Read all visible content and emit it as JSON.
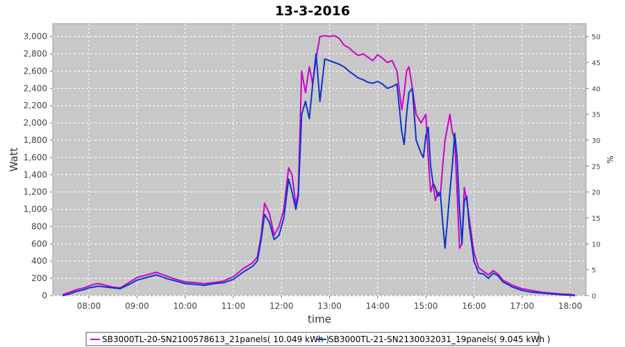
{
  "chart_data": {
    "type": "line",
    "title": "13-3-2016",
    "xlabel": "time",
    "ylabel": "Watt",
    "y2label": "%",
    "xlim": [
      7.25,
      18.33
    ],
    "ylim": [
      0,
      3150
    ],
    "y2lim": [
      0,
      52.5
    ],
    "grid": true,
    "legend_position": "bottom",
    "x_ticks": [
      "08:00",
      "09:00",
      "10:00",
      "11:00",
      "12:00",
      "13:00",
      "14:00",
      "15:00",
      "16:00",
      "17:00",
      "18:00"
    ],
    "y_ticks": [
      "0",
      "200",
      "400",
      "600",
      "800",
      "1,000",
      "1,200",
      "1,400",
      "1,600",
      "1,800",
      "2,000",
      "2,200",
      "2,400",
      "2,600",
      "2,800",
      "3,000"
    ],
    "y2_ticks": [
      "0",
      "5",
      "10",
      "15",
      "20",
      "25",
      "30",
      "35",
      "40",
      "45",
      "50"
    ],
    "series": [
      {
        "name": "SB3000TL-20-SN2100578613_21panels( 10.049 kWh )",
        "color": "#cc00cc",
        "x": [
          7.45,
          7.6,
          7.75,
          7.9,
          8.0,
          8.1,
          8.2,
          8.35,
          8.5,
          8.65,
          8.8,
          9.0,
          9.2,
          9.4,
          9.6,
          9.8,
          10.0,
          10.2,
          10.4,
          10.6,
          10.8,
          11.0,
          11.2,
          11.4,
          11.5,
          11.58,
          11.65,
          11.75,
          11.85,
          11.95,
          12.05,
          12.15,
          12.22,
          12.3,
          12.35,
          12.42,
          12.5,
          12.58,
          12.65,
          12.72,
          12.8,
          12.9,
          13.0,
          13.1,
          13.2,
          13.3,
          13.4,
          13.5,
          13.6,
          13.7,
          13.8,
          13.9,
          14.0,
          14.1,
          14.2,
          14.3,
          14.4,
          14.5,
          14.55,
          14.6,
          14.65,
          14.72,
          14.8,
          14.9,
          14.95,
          15.0,
          15.05,
          15.1,
          15.15,
          15.2,
          15.25,
          15.3,
          15.35,
          15.4,
          15.5,
          15.55,
          15.6,
          15.65,
          15.7,
          15.75,
          15.8,
          15.85,
          15.9,
          16.0,
          16.1,
          16.2,
          16.3,
          16.4,
          16.5,
          16.6,
          16.7,
          16.8,
          17.0,
          17.2,
          17.4,
          17.6,
          17.8,
          18.0,
          18.1
        ],
        "values": [
          10,
          40,
          70,
          90,
          110,
          130,
          140,
          120,
          100,
          90,
          140,
          210,
          240,
          270,
          230,
          190,
          160,
          150,
          140,
          150,
          170,
          220,
          310,
          380,
          450,
          700,
          1070,
          950,
          700,
          800,
          1000,
          1480,
          1400,
          1050,
          1200,
          2600,
          2350,
          2650,
          2450,
          2750,
          3000,
          3010,
          3000,
          3010,
          2980,
          2900,
          2870,
          2820,
          2780,
          2800,
          2760,
          2720,
          2790,
          2750,
          2700,
          2720,
          2600,
          2150,
          2350,
          2600,
          2650,
          2400,
          2100,
          2000,
          2050,
          2100,
          1600,
          1200,
          1300,
          1100,
          1200,
          1150,
          1500,
          1800,
          2100,
          1900,
          1800,
          1200,
          550,
          600,
          1250,
          1100,
          900,
          500,
          320,
          280,
          240,
          290,
          250,
          180,
          150,
          120,
          80,
          60,
          40,
          30,
          20,
          15,
          5
        ]
      },
      {
        "name": "SB3000TL-21-SN2130032031_19panels( 9.045 kWh )",
        "color": "#0a34cc",
        "x": [
          7.45,
          7.6,
          7.75,
          7.9,
          8.0,
          8.1,
          8.2,
          8.35,
          8.5,
          8.65,
          8.8,
          9.0,
          9.2,
          9.4,
          9.6,
          9.8,
          10.0,
          10.2,
          10.4,
          10.6,
          10.8,
          11.0,
          11.2,
          11.4,
          11.5,
          11.58,
          11.65,
          11.75,
          11.85,
          11.95,
          12.05,
          12.15,
          12.22,
          12.3,
          12.35,
          12.42,
          12.5,
          12.58,
          12.65,
          12.72,
          12.8,
          12.9,
          13.0,
          13.1,
          13.2,
          13.3,
          13.4,
          13.5,
          13.6,
          13.7,
          13.8,
          13.9,
          14.0,
          14.1,
          14.2,
          14.3,
          14.4,
          14.5,
          14.55,
          14.6,
          14.65,
          14.72,
          14.8,
          14.9,
          14.95,
          15.0,
          15.05,
          15.1,
          15.15,
          15.2,
          15.25,
          15.3,
          15.35,
          15.4,
          15.5,
          15.55,
          15.6,
          15.65,
          15.7,
          15.75,
          15.8,
          15.85,
          15.9,
          16.0,
          16.1,
          16.2,
          16.3,
          16.4,
          16.5,
          16.6,
          16.7,
          16.8,
          17.0,
          17.2,
          17.4,
          17.6,
          17.8,
          18.0,
          18.1
        ],
        "values": [
          0,
          20,
          50,
          70,
          90,
          100,
          110,
          100,
          90,
          80,
          120,
          180,
          210,
          240,
          200,
          170,
          140,
          130,
          120,
          140,
          150,
          190,
          270,
          340,
          400,
          650,
          940,
          850,
          650,
          700,
          900,
          1350,
          1200,
          1000,
          1150,
          2100,
          2250,
          2050,
          2450,
          2800,
          2250,
          2740,
          2720,
          2700,
          2680,
          2650,
          2600,
          2560,
          2520,
          2500,
          2470,
          2460,
          2480,
          2450,
          2400,
          2420,
          2450,
          1900,
          1750,
          2100,
          2350,
          2400,
          1800,
          1650,
          1600,
          1850,
          1950,
          1500,
          1300,
          1250,
          1150,
          1200,
          850,
          550,
          1200,
          1500,
          1880,
          1600,
          1000,
          600,
          1100,
          1150,
          820,
          400,
          260,
          250,
          200,
          260,
          230,
          160,
          130,
          100,
          60,
          40,
          30,
          20,
          10,
          5,
          0
        ]
      }
    ]
  }
}
